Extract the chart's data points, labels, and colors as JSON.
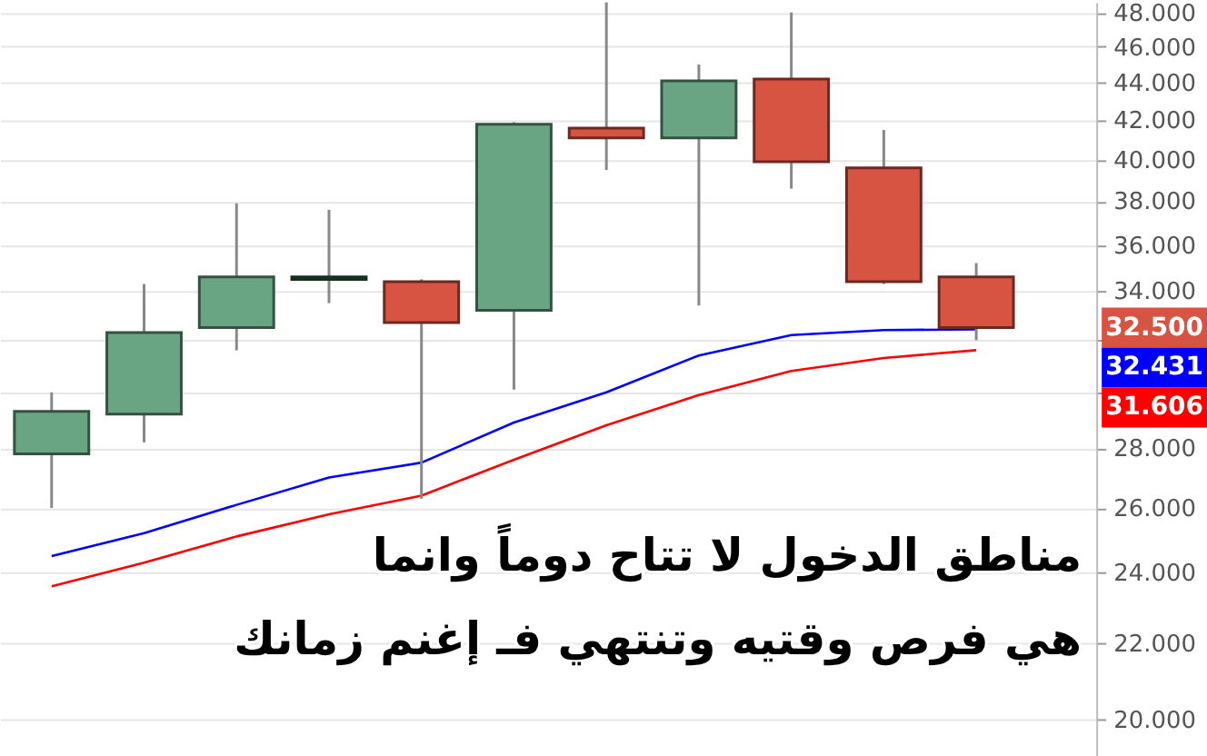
{
  "chart_data": {
    "type": "candlestick",
    "categories": [
      null,
      null,
      null,
      null,
      null,
      null,
      null,
      null,
      null,
      null,
      null
    ],
    "ohlc": [
      [
        27.8,
        30.0,
        26.0,
        29.3
      ],
      [
        29.2,
        34.3,
        28.2,
        32.3
      ],
      [
        32.5,
        37.9,
        31.6,
        34.6
      ],
      [
        34.5,
        37.6,
        33.5,
        34.6
      ],
      [
        34.4,
        34.5,
        26.3,
        32.7
      ],
      [
        33.2,
        41.9,
        30.1,
        41.8
      ],
      [
        41.6,
        48.6,
        39.5,
        41.1
      ],
      [
        41.1,
        45.0,
        33.4,
        44.1
      ],
      [
        44.2,
        48.0,
        38.6,
        39.9
      ],
      [
        39.6,
        41.5,
        34.3,
        34.4
      ],
      [
        34.6,
        35.2,
        32.0,
        32.5
      ]
    ],
    "colors": [
      "#6aa583",
      "#6aa583",
      "#6aa583",
      "#2c5e3f",
      "#d75442",
      "#6aa583",
      "#d75442",
      "#6aa583",
      "#d75442",
      "#d75442",
      "#d75442"
    ],
    "series": [
      {
        "type": "line",
        "color": "#0000ff",
        "values": [
          24.5,
          25.2,
          26.1,
          27.0,
          27.5,
          28.9,
          30.0,
          31.4,
          32.2,
          32.4,
          32.431
        ]
      },
      {
        "type": "line",
        "color": "#ff0000",
        "values": [
          23.6,
          24.3,
          25.1,
          25.8,
          26.4,
          27.6,
          28.8,
          29.9,
          30.8,
          31.3,
          31.606
        ]
      }
    ],
    "log": "y",
    "ylim": [
      19.1,
      48.6
    ],
    "yticks": [
      {
        "value": 20,
        "label": "20.000"
      },
      {
        "value": 22,
        "label": "22.000"
      },
      {
        "value": 24,
        "label": "24.000"
      },
      {
        "value": 26,
        "label": "26.000"
      },
      {
        "value": 28,
        "label": "28.000"
      },
      {
        "value": 30,
        "label": null
      },
      {
        "value": 32,
        "label": null
      },
      {
        "value": 34,
        "label": "34.000"
      },
      {
        "value": 36,
        "label": "36.000"
      },
      {
        "value": 38,
        "label": "38.000"
      },
      {
        "value": 40,
        "label": "40.000"
      },
      {
        "value": 42,
        "label": "42.000"
      },
      {
        "value": 44,
        "label": "44.000"
      },
      {
        "value": 46,
        "label": "46.000"
      },
      {
        "value": 48,
        "label": "48.000"
      }
    ],
    "grid": "y",
    "annotations": [
      "32.500",
      "32.431",
      "31.606",
      "مناطق الدخول لا تتاح دوماً وانما",
      "هي فرص وقتيه وتنتهي فـ إغنم زمانك"
    ]
  }
}
